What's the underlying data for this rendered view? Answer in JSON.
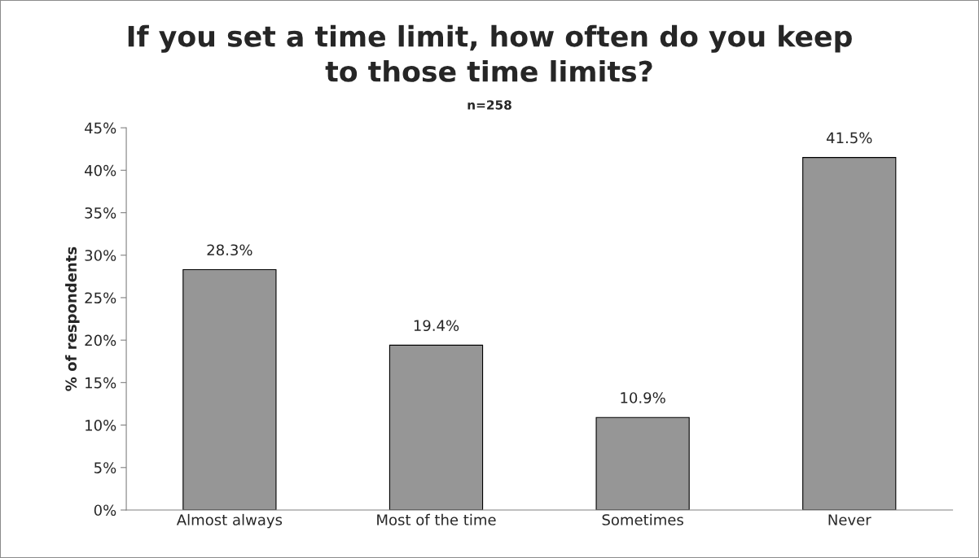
{
  "chart_data": {
    "type": "bar",
    "title": "If you set a time limit, how often do you keep\nto those time limits?",
    "subtitle": "n=258",
    "ylabel": "% of respondents",
    "categories": [
      "Almost always",
      "Most of the time",
      "Sometimes",
      "Never"
    ],
    "values": [
      28.3,
      19.4,
      10.9,
      41.5
    ],
    "color": "#969696",
    "value_labels": [
      "28.3%",
      "19.4%",
      "10.9%",
      "41.5%"
    ],
    "ylim": [
      0,
      45
    ],
    "yticks": [
      {
        "value": 0,
        "label": "0%"
      },
      {
        "value": 5,
        "label": "5%"
      },
      {
        "value": 10,
        "label": "10%"
      },
      {
        "value": 15,
        "label": "15%"
      },
      {
        "value": 20,
        "label": "20%"
      },
      {
        "value": 25,
        "label": "25%"
      },
      {
        "value": 30,
        "label": "30%"
      },
      {
        "value": 35,
        "label": "35%"
      },
      {
        "value": 40,
        "label": "40%"
      },
      {
        "value": 45,
        "label": "45%"
      }
    ]
  }
}
